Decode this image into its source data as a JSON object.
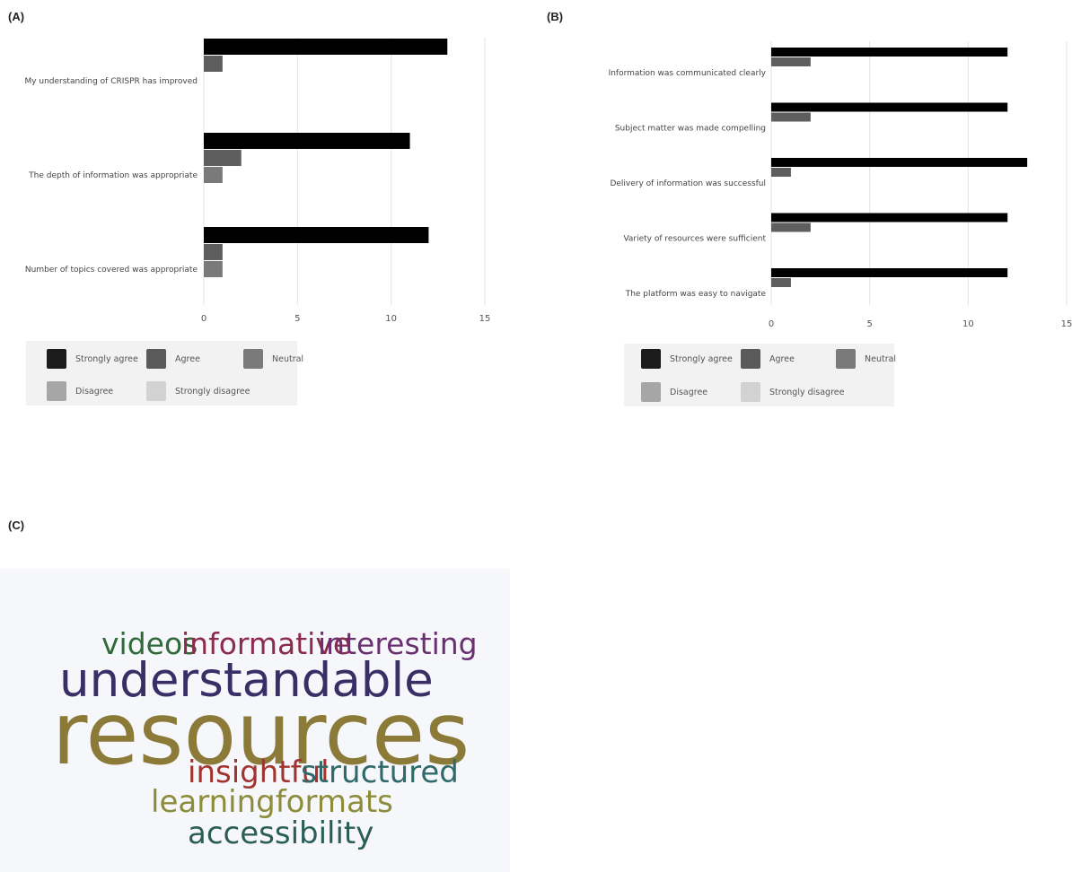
{
  "panels": {
    "a_label": "(A)",
    "b_label": "(B)",
    "c_label": "(C)"
  },
  "legend": {
    "items": [
      {
        "label": "Strongly agree",
        "color": "#1c1c1c"
      },
      {
        "label": "Agree",
        "color": "#5a5a5a"
      },
      {
        "label": "Neutral",
        "color": "#7a7a7a"
      },
      {
        "label": "Disagree",
        "color": "#a6a6a6"
      },
      {
        "label": "Strongly disagree",
        "color": "#d2d2d2"
      }
    ]
  },
  "chart_data": [
    {
      "type": "bar",
      "orientation": "horizontal",
      "categories": [
        "My understanding of CRISPR has improved",
        "The depth of information was appropriate",
        "Number of topics covered was appropriate"
      ],
      "series": [
        {
          "name": "Strongly agree",
          "values": [
            13,
            11,
            12
          ]
        },
        {
          "name": "Agree",
          "values": [
            1,
            2,
            1
          ]
        },
        {
          "name": "Neutral",
          "values": [
            0,
            1,
            1
          ]
        }
      ],
      "xticks": [
        0,
        5,
        10,
        15
      ],
      "xlim": [
        0,
        15
      ],
      "grid": true,
      "legend_position": "bottom-left"
    },
    {
      "type": "bar",
      "orientation": "horizontal",
      "categories": [
        "Information was communicated clearly",
        "Subject matter was made compelling",
        "Delivery of information was successful",
        "Variety of resources were sufficient",
        "The platform was easy to navigate"
      ],
      "series": [
        {
          "name": "Strongly agree",
          "values": [
            12,
            12,
            13,
            12,
            12
          ]
        },
        {
          "name": "Agree",
          "values": [
            2,
            2,
            1,
            2,
            1
          ]
        }
      ],
      "xticks": [
        0,
        5,
        10,
        15
      ],
      "xlim": [
        0,
        15
      ],
      "grid": true,
      "legend_position": "bottom-left"
    }
  ],
  "wordcloud": {
    "words": [
      {
        "text": "videos",
        "color": "#2f6b3a"
      },
      {
        "text": "informative",
        "color": "#8c2c4a"
      },
      {
        "text": "interesting",
        "color": "#6a2f6e"
      },
      {
        "text": "understandable",
        "color": "#3a2e66"
      },
      {
        "text": "resources",
        "color": "#8c7a38"
      },
      {
        "text": "insightful",
        "color": "#a1342f"
      },
      {
        "text": "structured",
        "color": "#2f6a6a"
      },
      {
        "text": "learningformats",
        "color": "#8c8c3a"
      },
      {
        "text": "accessibility",
        "color": "#2a5e56"
      }
    ]
  }
}
